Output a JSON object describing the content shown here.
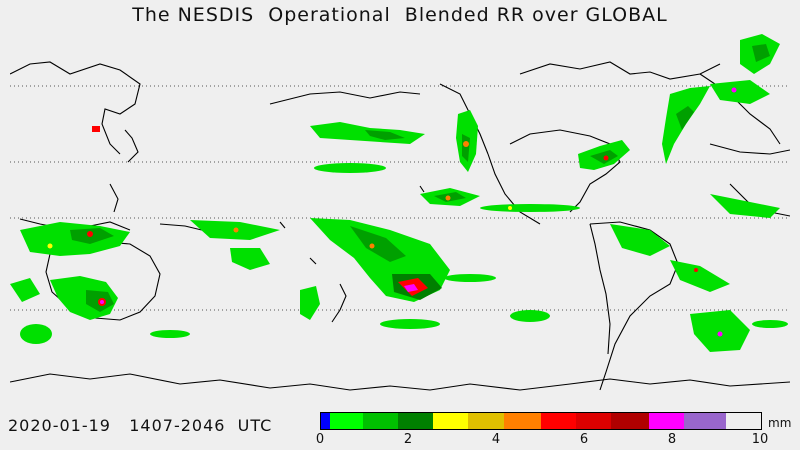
{
  "title": "The NESDIS  Operational  Blended RR over GLOBAL",
  "date_range": "2020-01-19   1407-2046  UTC",
  "legend": {
    "unit": "mm",
    "ticks": [
      "0",
      "2",
      "4",
      "6",
      "8",
      "10"
    ],
    "colors": [
      "#0000ff",
      "#00ff00",
      "#00c000",
      "#008000",
      "#ffff00",
      "#e0c000",
      "#ff8000",
      "#ff0000",
      "#dd0000",
      "#b00000",
      "#ff00ff",
      "#9966cc"
    ]
  },
  "colors": {
    "background": "#efefef",
    "coastline": "#000000",
    "gridline": "#555555"
  }
}
